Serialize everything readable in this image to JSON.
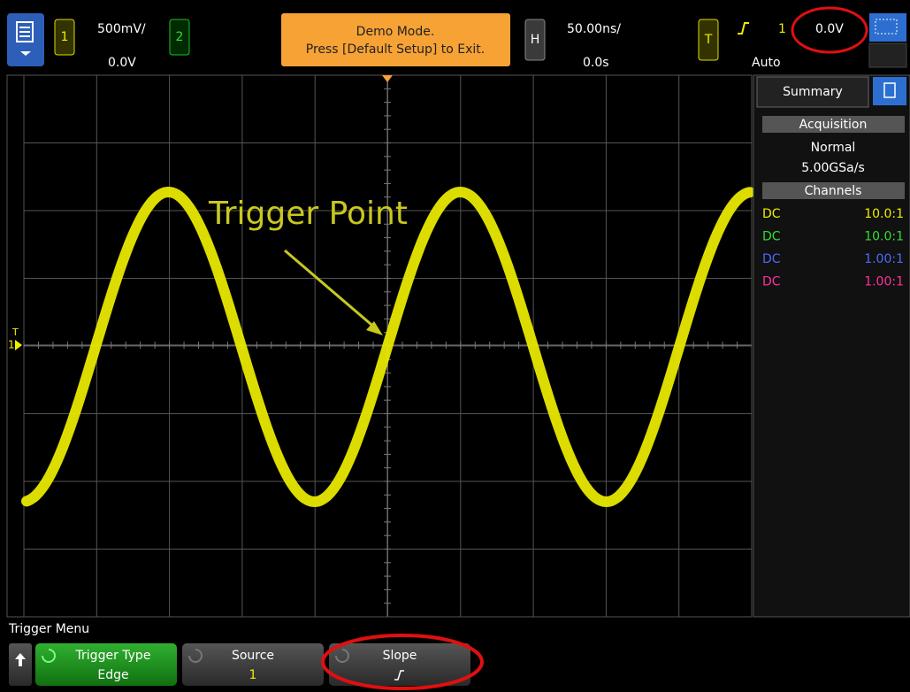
{
  "top_bar": {
    "channel1": {
      "number": "1",
      "scale": "500mV/",
      "offset": "0.0V"
    },
    "channel2": {
      "number": "2"
    },
    "demo_banner": [
      "Demo Mode.",
      "Press [Default Setup] to Exit."
    ],
    "horizontal": {
      "label": "H",
      "scale": "50.00ns/",
      "delay": "0.0s"
    },
    "trigger": {
      "label": "T",
      "source": "1",
      "level": "0.0V",
      "mode": "Auto"
    }
  },
  "screen": {
    "trigger_marker": "T",
    "channel_marker": "1",
    "annotation": "Trigger Point"
  },
  "sidebar": {
    "tab": "Summary",
    "acquisition": {
      "header": "Acquisition",
      "mode": "Normal",
      "rate": "5.00GSa/s"
    },
    "channels": {
      "header": "Channels",
      "rows": [
        [
          "DC",
          "10.0:1"
        ],
        [
          "DC",
          "10.0:1"
        ],
        [
          "DC",
          "1.00:1"
        ],
        [
          "DC",
          "1.00:1"
        ]
      ]
    }
  },
  "softkeys": {
    "menu_title": "Trigger Menu",
    "keys": [
      {
        "label": "Trigger Type",
        "value": "Edge"
      },
      {
        "label": "Source",
        "value": "1"
      },
      {
        "label": "Slope"
      }
    ]
  }
}
